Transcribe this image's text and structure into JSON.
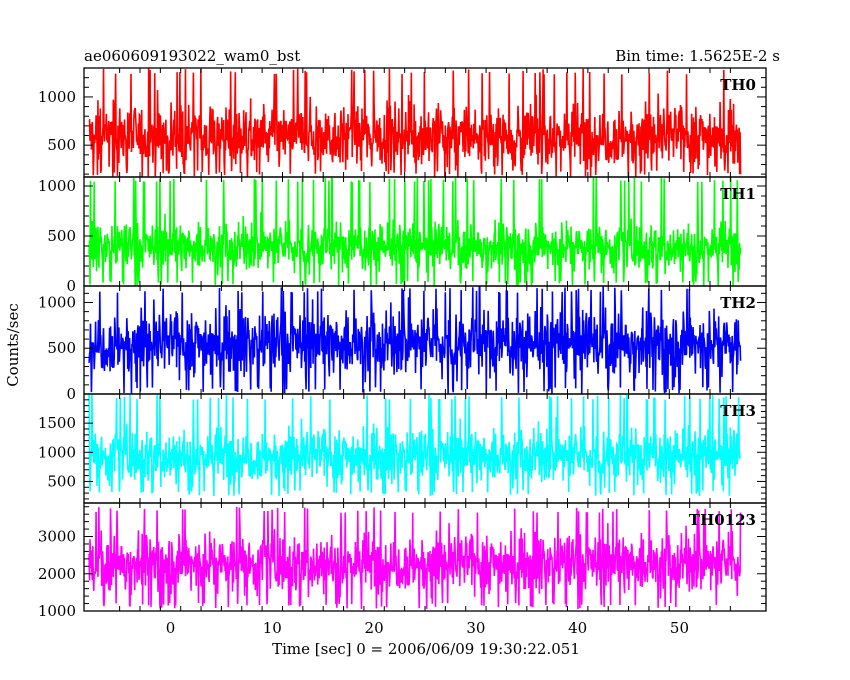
{
  "header": {
    "title": "ae060609193022_wam0_bst",
    "bin_time": "Bin time: 1.5625E-2 s"
  },
  "chart_data": {
    "type": "line",
    "xlabel": "Time [sec] 0 = 2006/06/09 19:30:22.051",
    "ylabel": "Counts/sec",
    "xlim": [
      -8.5,
      58.5
    ],
    "x_ticks": [
      0,
      10,
      20,
      30,
      40,
      50
    ],
    "data_range": [
      -8.0,
      56.0
    ],
    "panels": [
      {
        "name": "TH0",
        "color": "#ff0000",
        "ylim": [
          170,
          1300
        ],
        "y_ticks": [
          500,
          1000
        ],
        "mean": 600,
        "spread": 230,
        "min": 170,
        "max": 1300
      },
      {
        "name": "TH1",
        "color": "#00ff00",
        "ylim": [
          0,
          1090
        ],
        "y_ticks": [
          0,
          500,
          1000
        ],
        "mean": 400,
        "spread": 170,
        "min": 0,
        "max": 1090
      },
      {
        "name": "TH2",
        "color": "#0000ff",
        "ylim": [
          0,
          1180
        ],
        "y_ticks": [
          0,
          500,
          1000
        ],
        "mean": 560,
        "spread": 250,
        "min": 0,
        "max": 1180
      },
      {
        "name": "TH3",
        "color": "#00ffff",
        "ylim": [
          130,
          2000
        ],
        "y_ticks": [
          500,
          1000,
          1500
        ],
        "mean": 950,
        "spread": 330,
        "min": 250,
        "max": 2000
      },
      {
        "name": "TH0123",
        "color": "#ff00ff",
        "ylim": [
          1000,
          3900
        ],
        "y_ticks": [
          1000,
          2000,
          3000
        ],
        "mean": 2300,
        "spread": 560,
        "min": 1050,
        "max": 3800
      }
    ]
  }
}
